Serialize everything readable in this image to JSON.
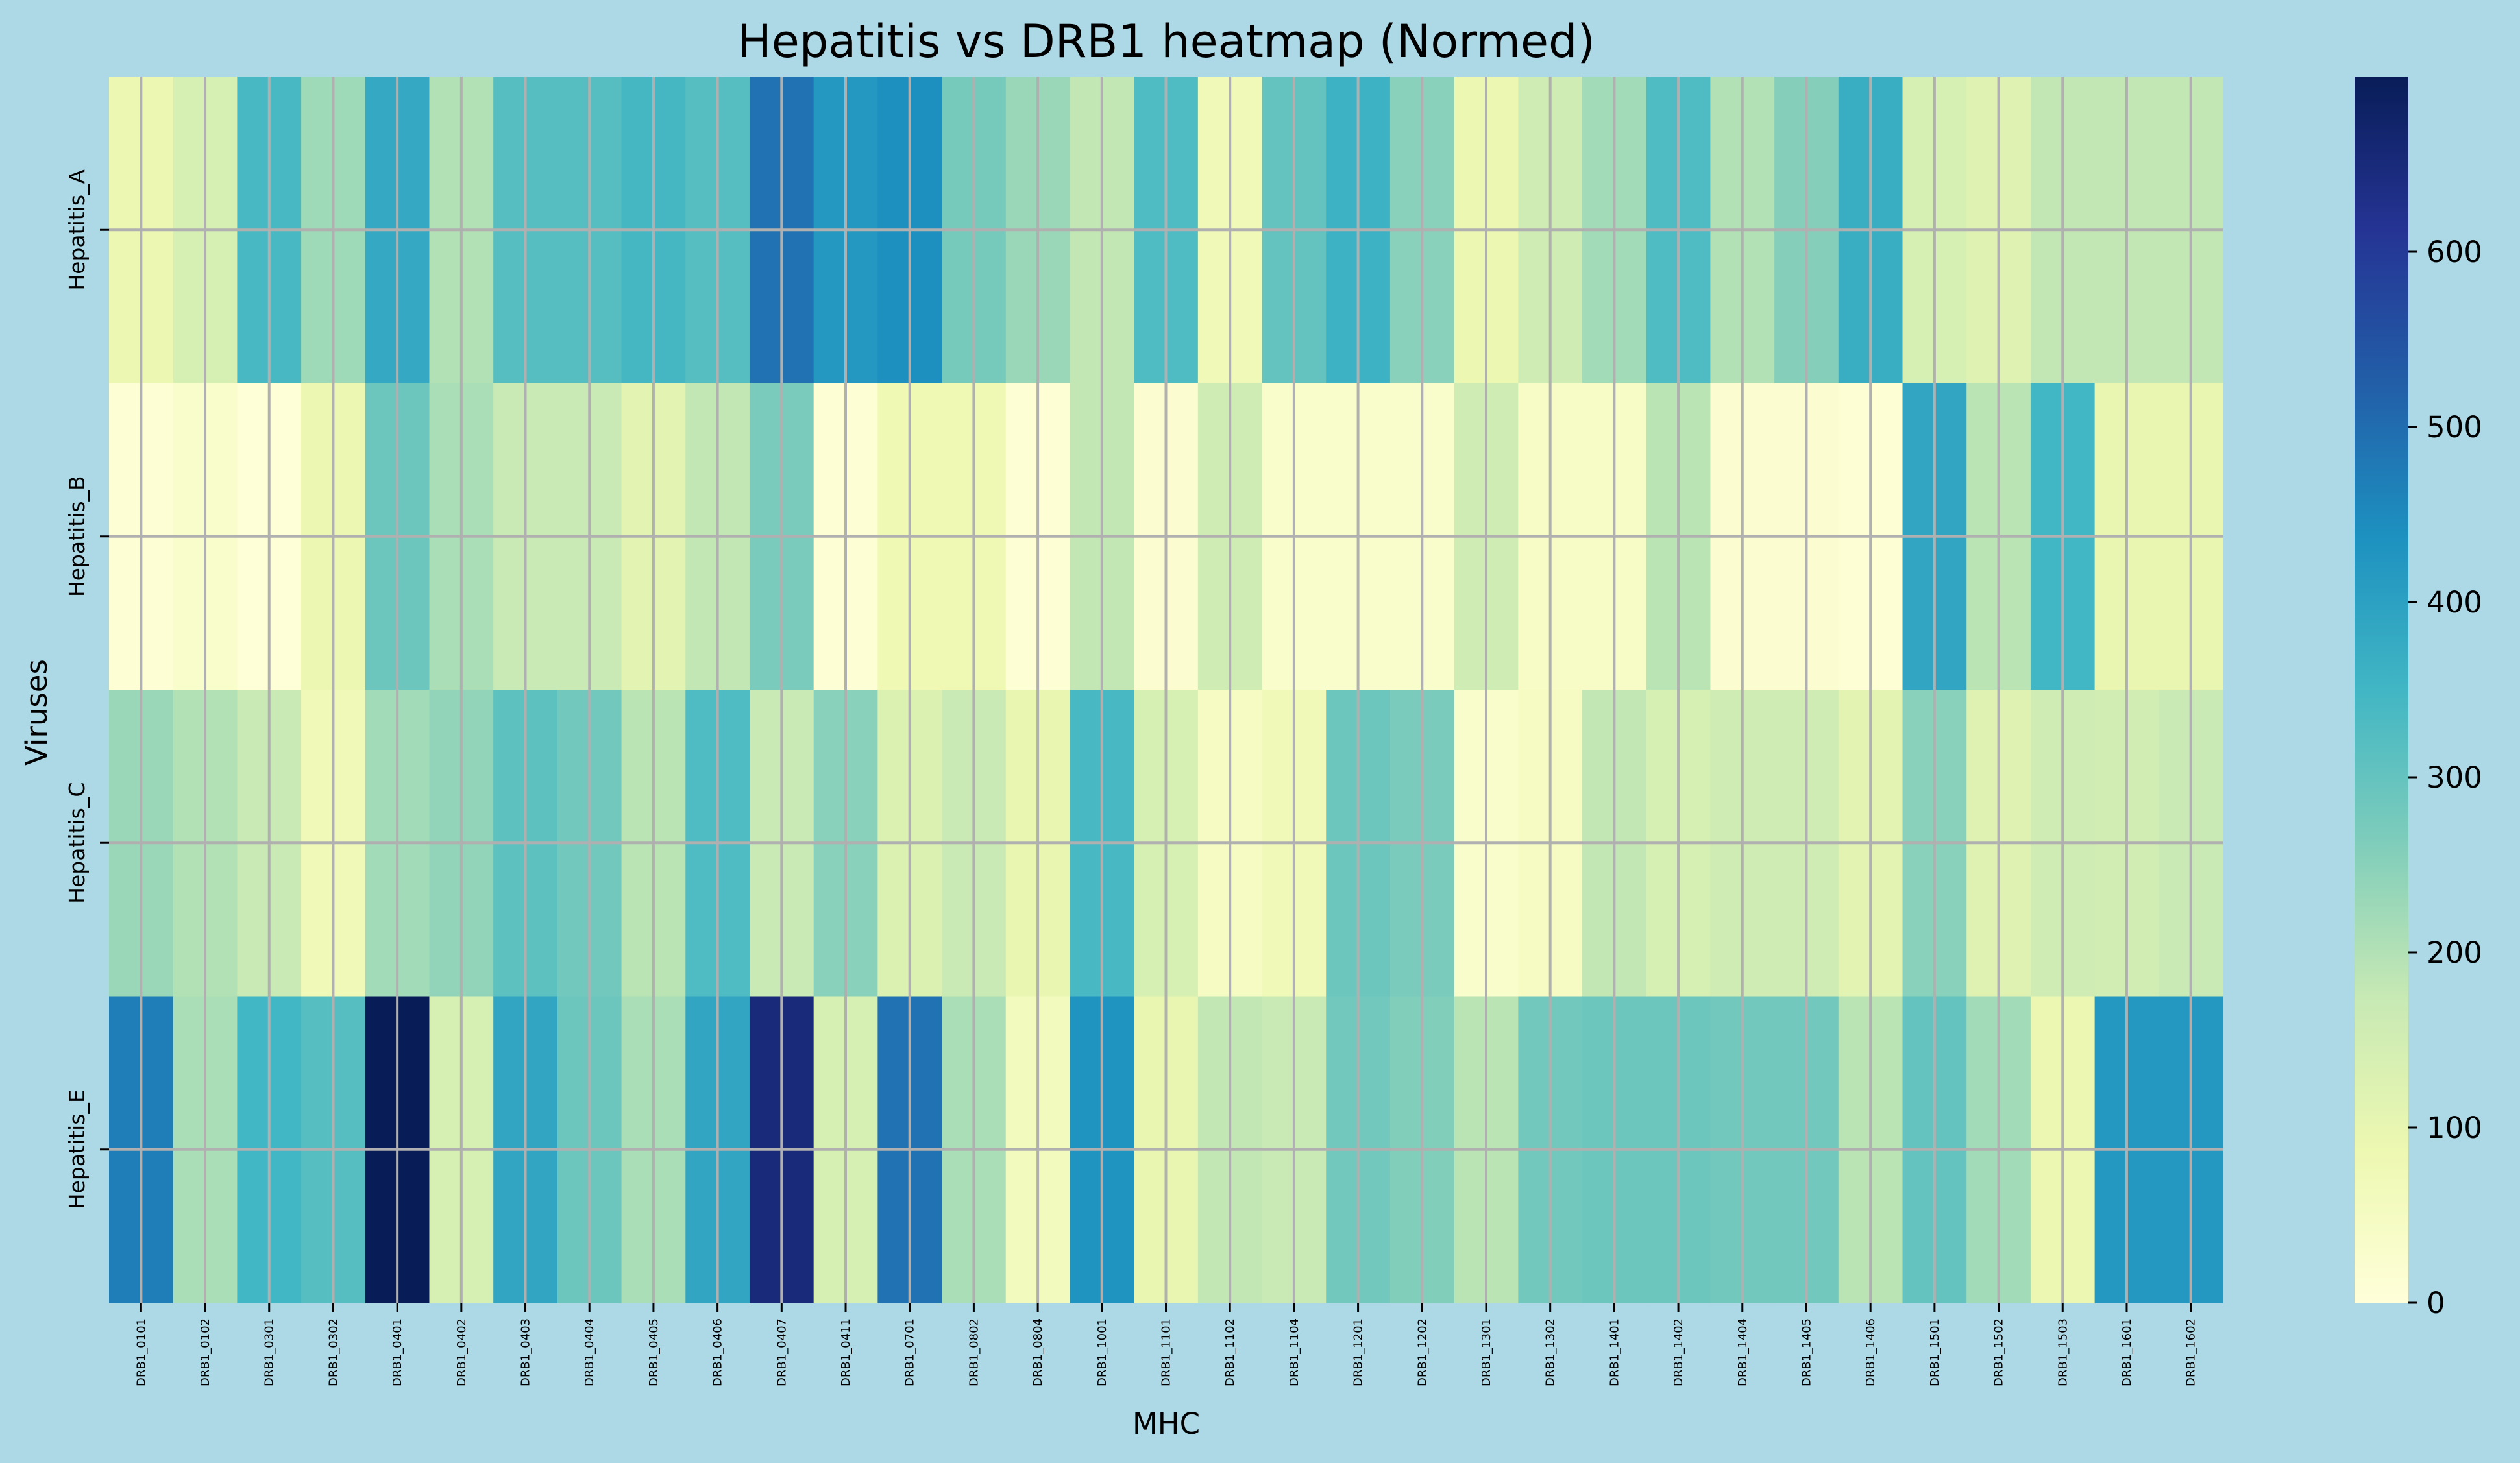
{
  "chart_data": {
    "type": "heatmap",
    "title": "Hepatitis vs DRB1 heatmap (Normed)",
    "xlabel": "MHC",
    "ylabel": "Viruses",
    "x_categories": [
      "DRB1_0101",
      "DRB1_0102",
      "DRB1_0301",
      "DRB1_0302",
      "DRB1_0401",
      "DRB1_0402",
      "DRB1_0403",
      "DRB1_0404",
      "DRB1_0405",
      "DRB1_0406",
      "DRB1_0407",
      "DRB1_0411",
      "DRB1_0701",
      "DRB1_0802",
      "DRB1_0804",
      "DRB1_1001",
      "DRB1_1101",
      "DRB1_1102",
      "DRB1_1104",
      "DRB1_1201",
      "DRB1_1202",
      "DRB1_1301",
      "DRB1_1302",
      "DRB1_1401",
      "DRB1_1402",
      "DRB1_1404",
      "DRB1_1405",
      "DRB1_1406",
      "DRB1_1501",
      "DRB1_1502",
      "DRB1_1503",
      "DRB1_1601",
      "DRB1_1602"
    ],
    "y_categories": [
      "Hepatitis_A",
      "Hepatitis_B",
      "Hepatitis_C",
      "Hepatitis_E"
    ],
    "values": [
      [
        90,
        140,
        340,
        225,
        380,
        200,
        320,
        320,
        345,
        320,
        490,
        420,
        440,
        275,
        230,
        180,
        330,
        70,
        300,
        360,
        250,
        90,
        160,
        220,
        330,
        200,
        255,
        370,
        140,
        120,
        180,
        180,
        180
      ],
      [
        10,
        30,
        5,
        90,
        290,
        210,
        170,
        170,
        110,
        180,
        270,
        10,
        80,
        80,
        10,
        180,
        20,
        160,
        30,
        30,
        30,
        160,
        40,
        40,
        190,
        20,
        20,
        10,
        390,
        190,
        350,
        100,
        100
      ],
      [
        230,
        200,
        170,
        70,
        220,
        240,
        310,
        280,
        190,
        330,
        170,
        250,
        130,
        170,
        100,
        340,
        140,
        50,
        70,
        290,
        270,
        30,
        50,
        180,
        140,
        160,
        160,
        110,
        250,
        120,
        160,
        150,
        170
      ],
      [
        470,
        210,
        350,
        320,
        700,
        140,
        390,
        290,
        210,
        390,
        650,
        140,
        490,
        210,
        60,
        430,
        100,
        180,
        170,
        280,
        260,
        190,
        280,
        290,
        290,
        280,
        280,
        190,
        300,
        220,
        90,
        420,
        420
      ]
    ],
    "colorbar": {
      "min": 0,
      "max": 700,
      "ticks": [
        0,
        100,
        200,
        300,
        400,
        500,
        600
      ]
    },
    "colormap": "YlGnBu",
    "grid": true,
    "grid_color": "#b0b0b0",
    "background_color": "#add8e6"
  }
}
